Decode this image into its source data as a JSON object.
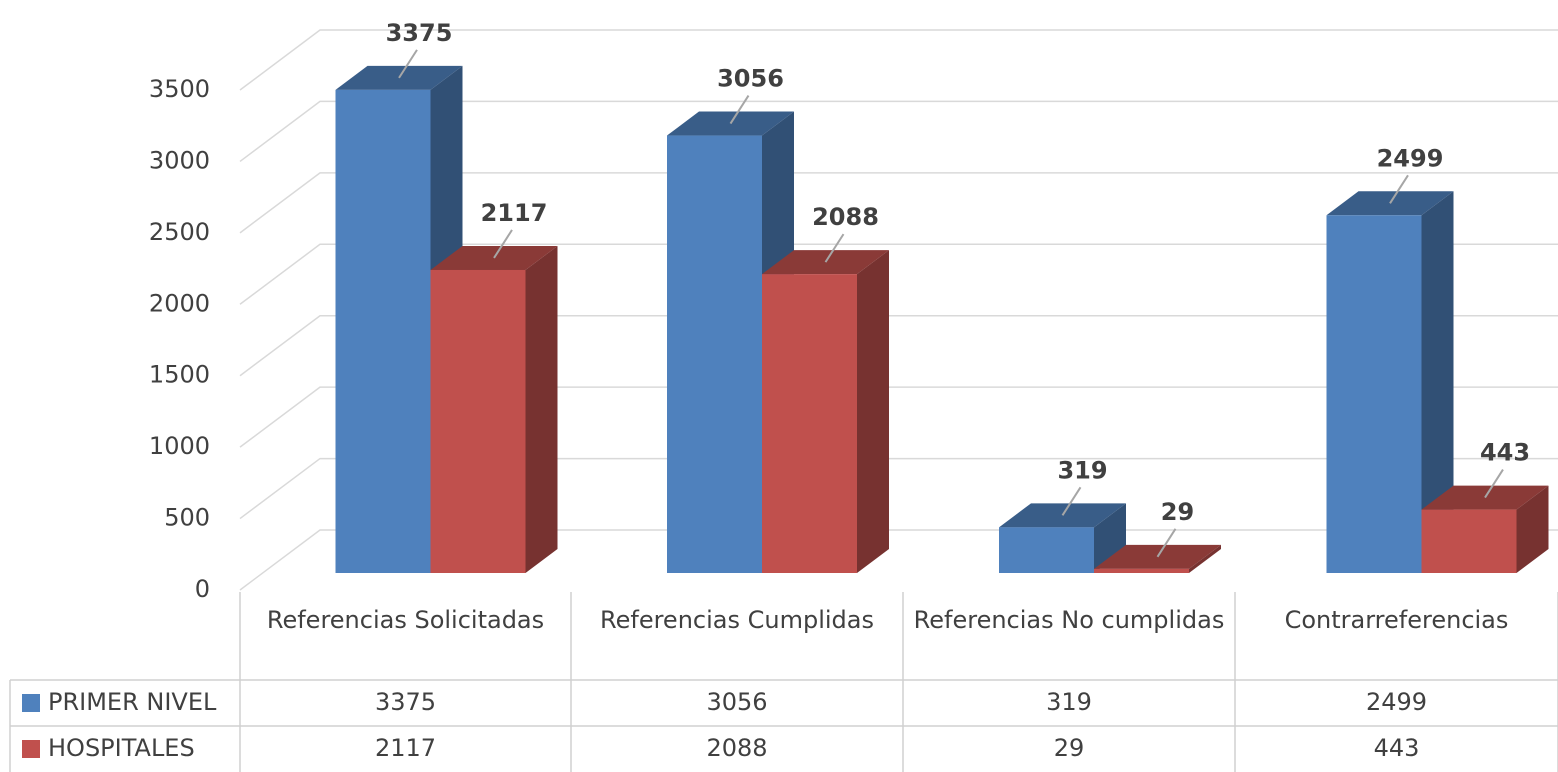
{
  "chart_data": {
    "type": "bar3d",
    "categories": [
      "Referencias Solicitadas",
      "Referencias Cumplidas",
      "Referencias No cumplidas",
      "Contrarreferencias"
    ],
    "series": [
      {
        "name": "PRIMER NIVEL",
        "color": "#4f81bd",
        "values": [
          3375,
          3056,
          319,
          2499
        ]
      },
      {
        "name": "HOSPITALES",
        "color": "#c0504d",
        "values": [
          2117,
          2088,
          29,
          443
        ]
      }
    ],
    "ylim": [
      0,
      3500
    ],
    "yticks": [
      0,
      500,
      1000,
      1500,
      2000,
      2500,
      3000,
      3500
    ],
    "grid": true,
    "data_table": true
  }
}
